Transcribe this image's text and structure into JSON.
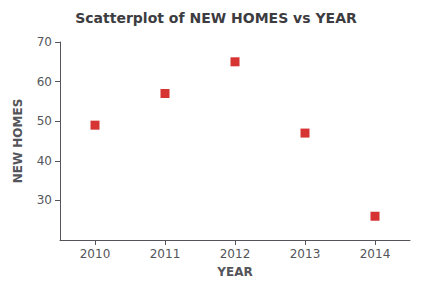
{
  "chart_data": {
    "type": "scatter",
    "title": "Scatterplot of NEW HOMES vs YEAR",
    "xlabel": "YEAR",
    "ylabel": "NEW HOMES",
    "x": [
      2010,
      2011,
      2012,
      2013,
      2014
    ],
    "y": [
      49,
      57,
      65,
      47,
      26
    ],
    "xlim": [
      2009.5,
      2014.5
    ],
    "ylim": [
      20,
      70
    ],
    "xticks": [
      2010,
      2011,
      2012,
      2013,
      2014
    ],
    "yticks": [
      30,
      40,
      50,
      60,
      70
    ],
    "color": "#CC0000",
    "marker": "square",
    "grid": false
  }
}
